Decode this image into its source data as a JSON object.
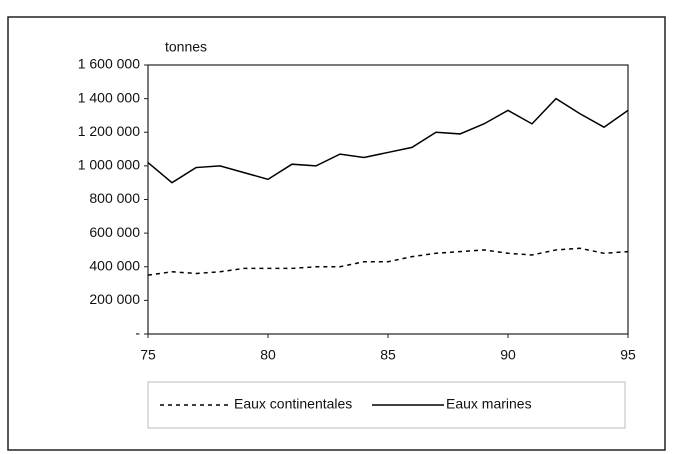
{
  "chart_data": {
    "type": "line",
    "y_unit_label": "tonnes",
    "x": [
      75,
      76,
      77,
      78,
      79,
      80,
      81,
      82,
      83,
      84,
      85,
      86,
      87,
      88,
      89,
      90,
      91,
      92,
      93,
      94,
      95
    ],
    "series": [
      {
        "name": "Eaux continentales",
        "color": "#000000",
        "line_style": "dashed",
        "values": [
          350000,
          370000,
          360000,
          370000,
          390000,
          390000,
          390000,
          400000,
          400000,
          430000,
          430000,
          460000,
          480000,
          490000,
          500000,
          480000,
          470000,
          500000,
          510000,
          480000,
          490000
        ]
      },
      {
        "name": "Eaux marines",
        "color": "#000000",
        "line_style": "solid",
        "values": [
          1020000,
          900000,
          990000,
          1000000,
          960000,
          920000,
          1010000,
          1000000,
          1070000,
          1050000,
          1080000,
          1110000,
          1200000,
          1190000,
          1250000,
          1330000,
          1250000,
          1400000,
          1310000,
          1230000,
          1330000
        ]
      }
    ],
    "xlim": [
      75,
      95
    ],
    "xticks": [
      75,
      80,
      85,
      90,
      95
    ],
    "ylim": [
      0,
      1600000
    ],
    "yticks": [
      {
        "value": 0,
        "label": "-"
      },
      {
        "value": 200000,
        "label": "200 000"
      },
      {
        "value": 400000,
        "label": "400 000"
      },
      {
        "value": 600000,
        "label": "600 000"
      },
      {
        "value": 800000,
        "label": "800 000"
      },
      {
        "value": 1000000,
        "label": "1 000 000"
      },
      {
        "value": 1200000,
        "label": "1 200 000"
      },
      {
        "value": 1400000,
        "label": "1 400 000"
      },
      {
        "value": 1600000,
        "label": "1 600 000"
      }
    ],
    "legend": "bottom"
  }
}
